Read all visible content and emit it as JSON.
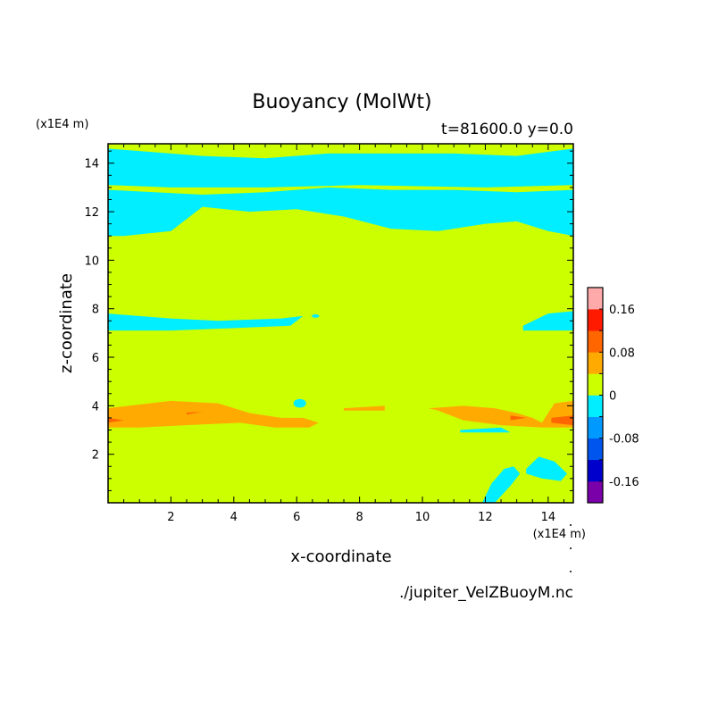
{
  "chart_data": {
    "type": "heatmap",
    "title": "Buoyancy (MolWt)",
    "subtitle": "t=81600.0 y=0.0",
    "xlabel": "x-coordinate",
    "ylabel": "z-coordinate",
    "x_unit": "(x1E4 m)",
    "y_unit": "(x1E4 m)",
    "footer": "./jupiter_VelZBuoyM.nc",
    "xlim": [
      0,
      14.8
    ],
    "ylim": [
      0,
      14.8
    ],
    "x_ticks": [
      2,
      4,
      6,
      8,
      10,
      12,
      14
    ],
    "y_ticks": [
      2,
      4,
      6,
      8,
      10,
      12,
      14
    ],
    "background_level": "0 to 0.04",
    "colorbar": {
      "levels": [
        -0.2,
        -0.16,
        -0.12,
        -0.08,
        -0.04,
        0,
        0.04,
        0.08,
        0.12,
        0.16,
        0.2
      ],
      "colors": [
        "#7a00aa",
        "#0000cc",
        "#0055ee",
        "#0099ff",
        "#00eeff",
        "#ccff00",
        "#ffaa00",
        "#ff6600",
        "#ff1a00",
        "#ffaaaa"
      ],
      "tick_labels": [
        "-0.16",
        "-0.08",
        "0",
        "0.08",
        "0.16"
      ],
      "tick_values": [
        -0.16,
        -0.08,
        0,
        0.08,
        0.16
      ]
    },
    "regions": [
      {
        "level": "-0.04 to 0",
        "color": "#00eeff",
        "points": [
          [
            0,
            14.6
          ],
          [
            3,
            14.3
          ],
          [
            5,
            14.2
          ],
          [
            7,
            14.4
          ],
          [
            9,
            14.4
          ],
          [
            11,
            14.4
          ],
          [
            13,
            14.3
          ],
          [
            14.8,
            14.6
          ],
          [
            14.8,
            13.1
          ],
          [
            12,
            13.0
          ],
          [
            8,
            13.1
          ],
          [
            5,
            13.0
          ],
          [
            2,
            13.0
          ],
          [
            0,
            13.1
          ]
        ]
      },
      {
        "level": "-0.04 to 0",
        "color": "#00eeff",
        "points": [
          [
            0,
            12.9
          ],
          [
            3,
            12.7
          ],
          [
            5,
            12.8
          ],
          [
            7,
            13.0
          ],
          [
            9,
            12.9
          ],
          [
            11,
            12.9
          ],
          [
            13,
            12.8
          ],
          [
            14.8,
            12.9
          ],
          [
            14.8,
            11.0
          ],
          [
            14,
            11.2
          ],
          [
            13,
            11.6
          ],
          [
            12,
            11.5
          ],
          [
            10.5,
            11.2
          ],
          [
            9,
            11.3
          ],
          [
            7.5,
            11.8
          ],
          [
            6,
            12.1
          ],
          [
            4.5,
            12.0
          ],
          [
            3,
            12.2
          ],
          [
            2,
            11.2
          ],
          [
            0.5,
            11.0
          ],
          [
            0,
            11.0
          ]
        ]
      },
      {
        "level": "-0.04 to 0",
        "color": "#00eeff",
        "points": [
          [
            0,
            7.8
          ],
          [
            2,
            7.6
          ],
          [
            3.5,
            7.5
          ],
          [
            5.5,
            7.6
          ],
          [
            6.2,
            7.7
          ],
          [
            5.8,
            7.3
          ],
          [
            4,
            7.2
          ],
          [
            2,
            7.1
          ],
          [
            0,
            7.1
          ]
        ]
      },
      {
        "level": "-0.04 to 0",
        "color": "#00eeff",
        "points": [
          [
            13.2,
            7.3
          ],
          [
            14,
            7.8
          ],
          [
            14.8,
            7.9
          ],
          [
            14.8,
            7.1
          ],
          [
            14,
            7.1
          ],
          [
            13.2,
            7.1
          ]
        ]
      },
      {
        "level": "-0.04 to 0",
        "color": "#00eeff",
        "points": [
          [
            12.3,
            0
          ],
          [
            12.8,
            0.7
          ],
          [
            13.1,
            1.2
          ],
          [
            12.9,
            1.5
          ],
          [
            12.6,
            1.4
          ],
          [
            12.2,
            0.8
          ],
          [
            11.9,
            0
          ]
        ]
      },
      {
        "level": "-0.04 to 0",
        "color": "#00eeff",
        "points": [
          [
            13.3,
            1.4
          ],
          [
            13.7,
            1.9
          ],
          [
            14.2,
            1.7
          ],
          [
            14.6,
            1.2
          ],
          [
            14.4,
            0.9
          ],
          [
            13.8,
            1.0
          ],
          [
            13.3,
            1.2
          ]
        ]
      },
      {
        "level": "-0.04 to 0",
        "color": "#00eeff",
        "points": [
          [
            11.2,
            3.0
          ],
          [
            12.5,
            3.1
          ],
          [
            12.8,
            2.9
          ],
          [
            11.2,
            2.9
          ]
        ]
      },
      {
        "level": "0.04 to 0.08",
        "color": "#ffaa00",
        "points": [
          [
            0,
            3.9
          ],
          [
            2,
            4.2
          ],
          [
            3.5,
            4.1
          ],
          [
            4.5,
            3.7
          ],
          [
            5.5,
            3.5
          ],
          [
            6.2,
            3.5
          ],
          [
            6.7,
            3.3
          ],
          [
            6.4,
            3.1
          ],
          [
            5.3,
            3.1
          ],
          [
            4.2,
            3.3
          ],
          [
            2.5,
            3.2
          ],
          [
            1,
            3.1
          ],
          [
            0,
            3.1
          ]
        ]
      },
      {
        "level": "0.04 to 0.08",
        "color": "#ffaa00",
        "points": [
          [
            10.2,
            3.9
          ],
          [
            11.3,
            4.0
          ],
          [
            12.3,
            3.9
          ],
          [
            13,
            3.7
          ],
          [
            13.5,
            3.5
          ],
          [
            13.8,
            3.3
          ],
          [
            14.2,
            4.1
          ],
          [
            14.8,
            4.2
          ],
          [
            14.8,
            3.1
          ],
          [
            13.8,
            3.1
          ],
          [
            12.5,
            3.2
          ],
          [
            11.3,
            3.4
          ],
          [
            10.5,
            3.8
          ]
        ]
      },
      {
        "level": "0.04 to 0.08",
        "color": "#ffaa00",
        "points": [
          [
            7.5,
            3.9
          ],
          [
            8.8,
            4.0
          ],
          [
            8.8,
            3.8
          ],
          [
            7.5,
            3.8
          ]
        ]
      },
      {
        "level": "0.08 to 0.12",
        "color": "#ff6600",
        "points": [
          [
            0,
            3.5
          ],
          [
            0.5,
            3.4
          ],
          [
            0,
            3.3
          ]
        ]
      },
      {
        "level": "0.08 to 0.12",
        "color": "#ff6600",
        "points": [
          [
            14.1,
            3.5
          ],
          [
            14.8,
            3.6
          ],
          [
            14.8,
            3.2
          ],
          [
            14.1,
            3.3
          ]
        ]
      },
      {
        "level": "0.08 to 0.12",
        "color": "#ff6600",
        "points": [
          [
            12.8,
            3.6
          ],
          [
            13.3,
            3.5
          ],
          [
            12.8,
            3.4
          ]
        ]
      },
      {
        "level": "0.08 to 0.12",
        "color": "#ff6600",
        "points": [
          [
            2.5,
            3.72
          ],
          [
            3.0,
            3.75
          ],
          [
            2.5,
            3.64
          ]
        ]
      }
    ],
    "spots": [
      {
        "level": "-0.04 to 0",
        "color": "#00eeff",
        "x": 0.6,
        "y": 11.9,
        "rx": 0.35,
        "ry": 0.25
      },
      {
        "level": "-0.04 to 0",
        "color": "#00eeff",
        "x": 11.4,
        "y": 12.0,
        "rx": 0.35,
        "ry": 0.2
      },
      {
        "level": "-0.04 to 0",
        "color": "#00eeff",
        "x": 13.9,
        "y": 12.0,
        "rx": 0.45,
        "ry": 0.3
      },
      {
        "level": "-0.04 to 0",
        "color": "#00eeff",
        "x": 6.6,
        "y": 7.7,
        "rx": 0.12,
        "ry": 0.07
      },
      {
        "level": "-0.04 to 0",
        "color": "#00eeff",
        "x": 6.1,
        "y": 4.1,
        "rx": 0.2,
        "ry": 0.18
      }
    ]
  }
}
